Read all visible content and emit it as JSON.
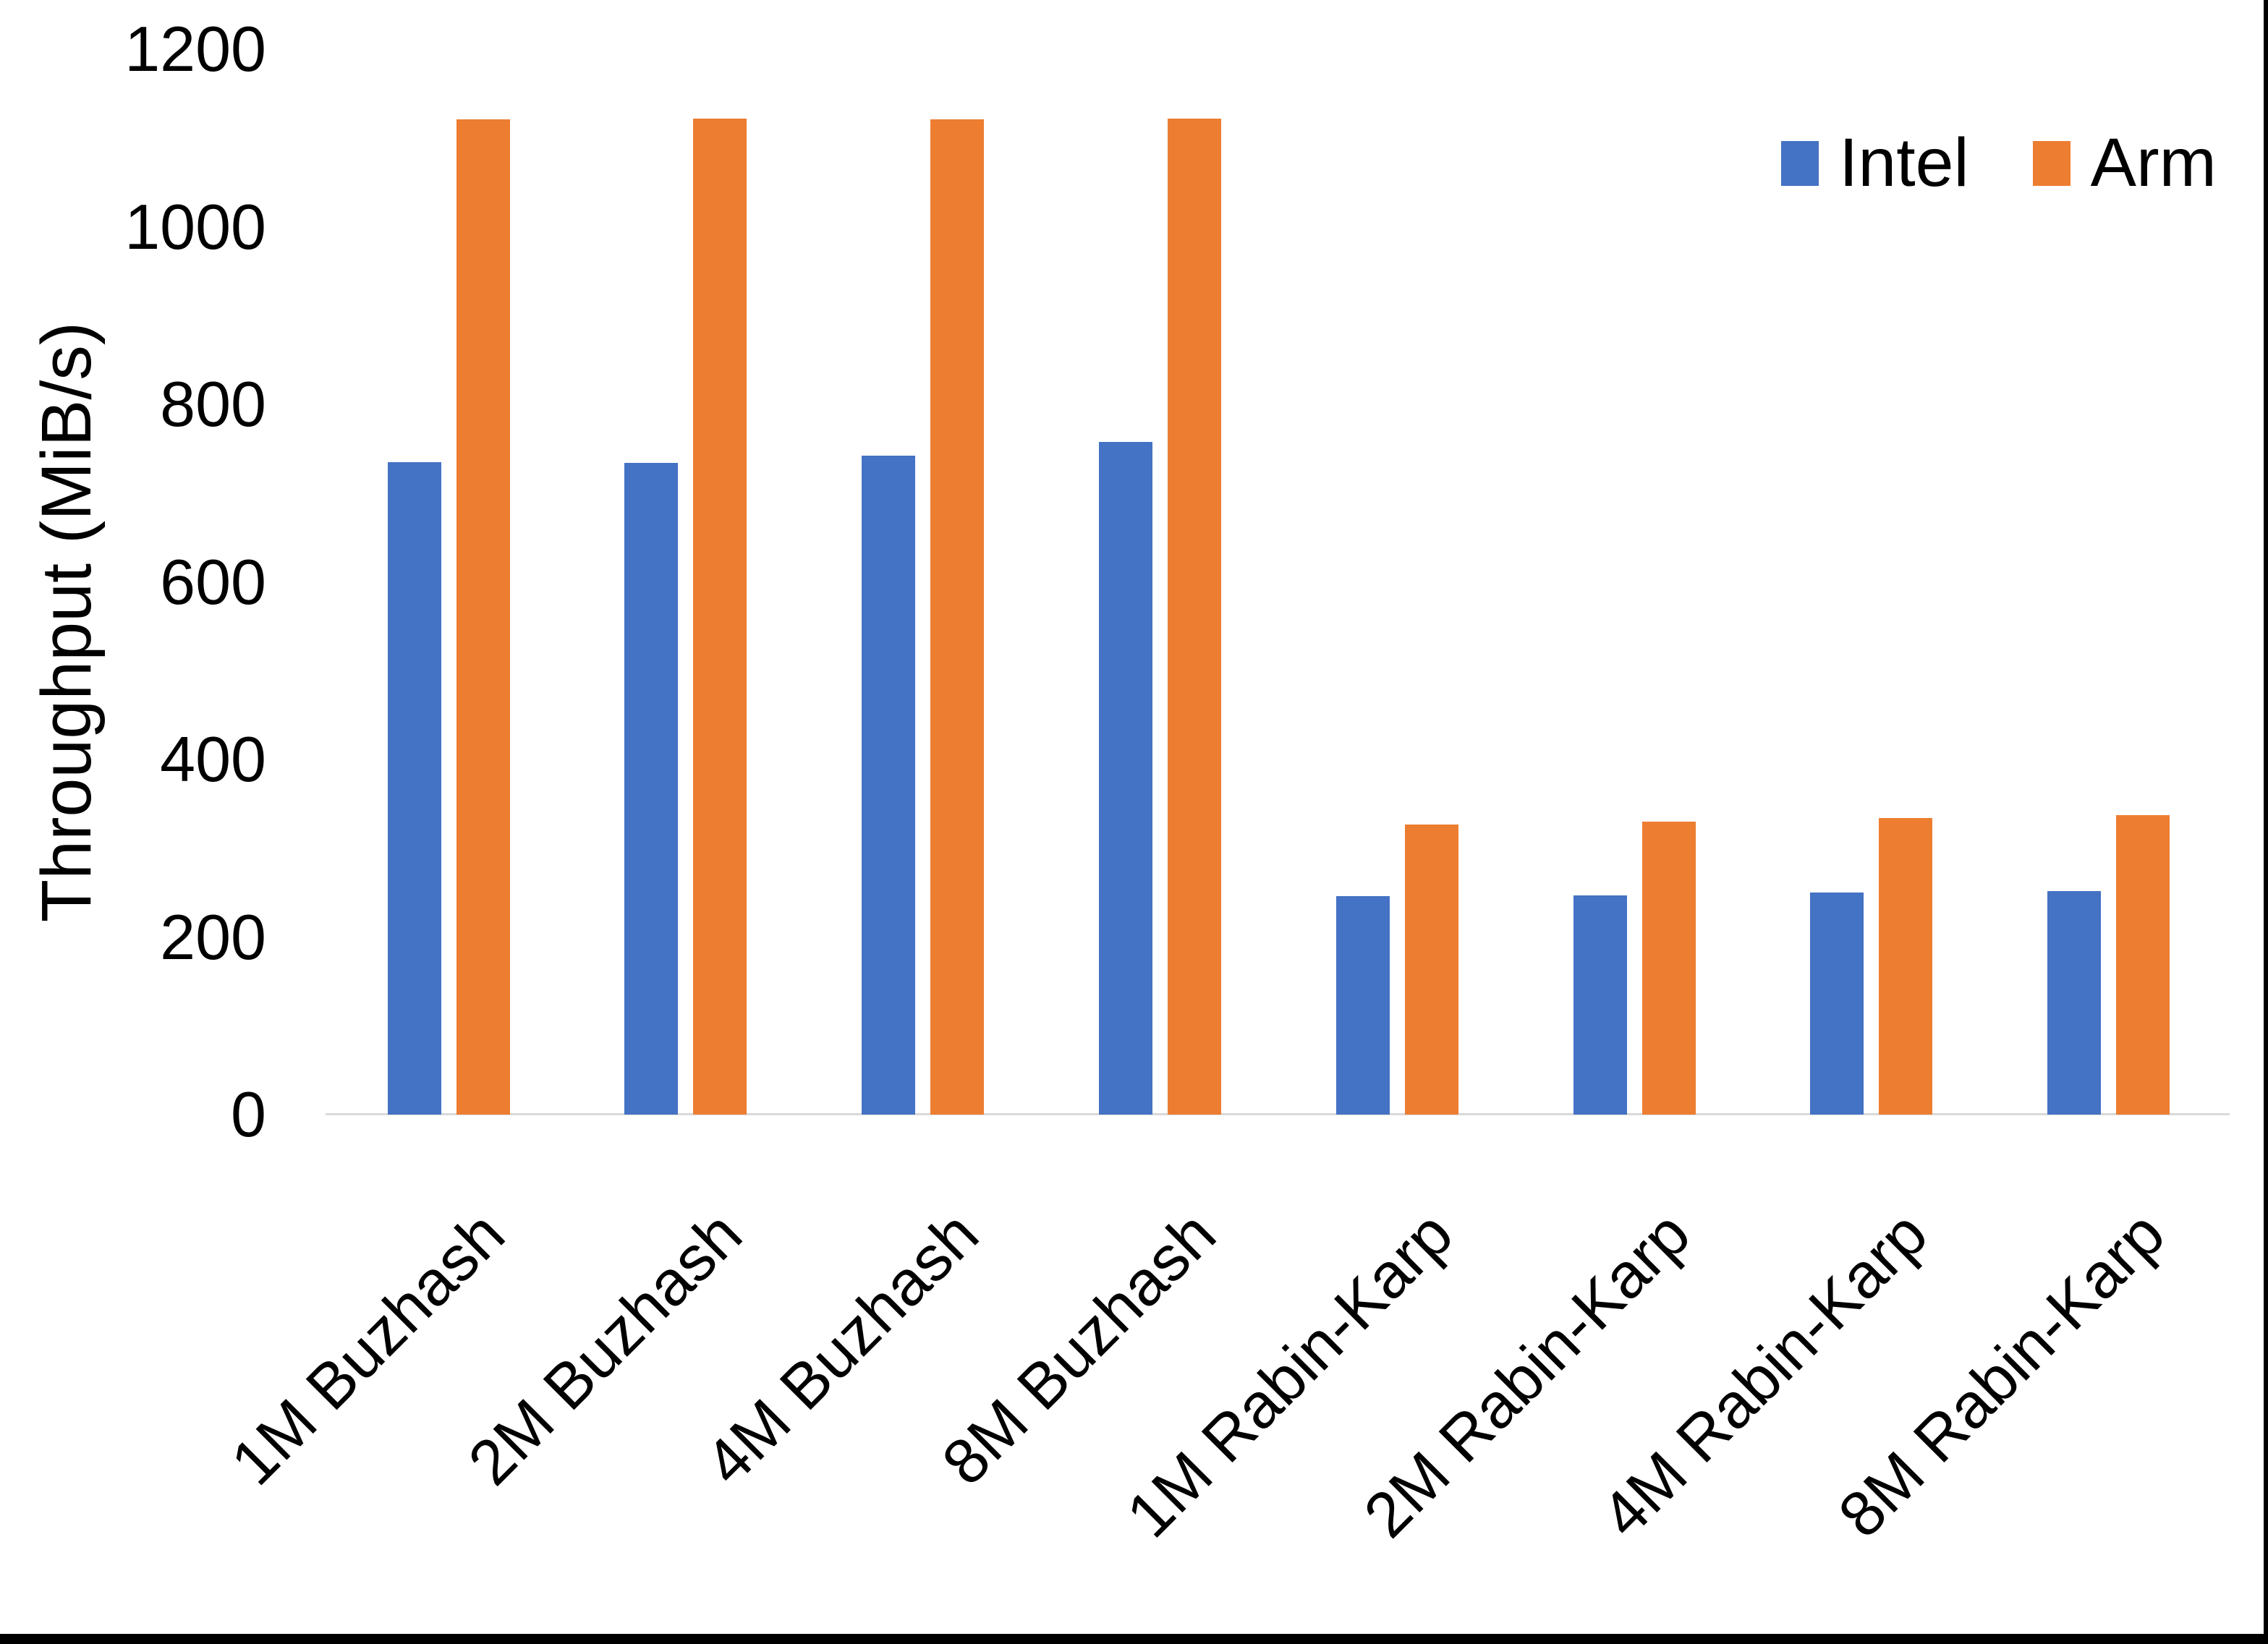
{
  "chart_data": {
    "type": "bar",
    "title": "",
    "xlabel": "",
    "ylabel": "Throughput (MiB/s)",
    "categories": [
      "1M Buzhash",
      "2M Buzhash",
      "4M Buzhash",
      "8M Buzhash",
      "1M Rabin-Karp",
      "2M Rabin-Karp",
      "4M Rabin-Karp",
      "8M Rabin-Karp"
    ],
    "series": [
      {
        "name": "Intel",
        "color": "#4472C4",
        "values": [
          735,
          734,
          742,
          758,
          246,
          247,
          250,
          252
        ]
      },
      {
        "name": "Arm",
        "color": "#ED7D31",
        "values": [
          1121,
          1122,
          1121,
          1122,
          327,
          330,
          334,
          337
        ]
      }
    ],
    "ylim": [
      0,
      1200
    ],
    "yticks": [
      0,
      200,
      400,
      600,
      800,
      1000,
      1200
    ],
    "grid": false,
    "legend_position": "top-right",
    "axis_line_color": "#D9D9D9",
    "text_color": "#000000",
    "background": "#FFFFFF",
    "frame_color": "#000000"
  }
}
